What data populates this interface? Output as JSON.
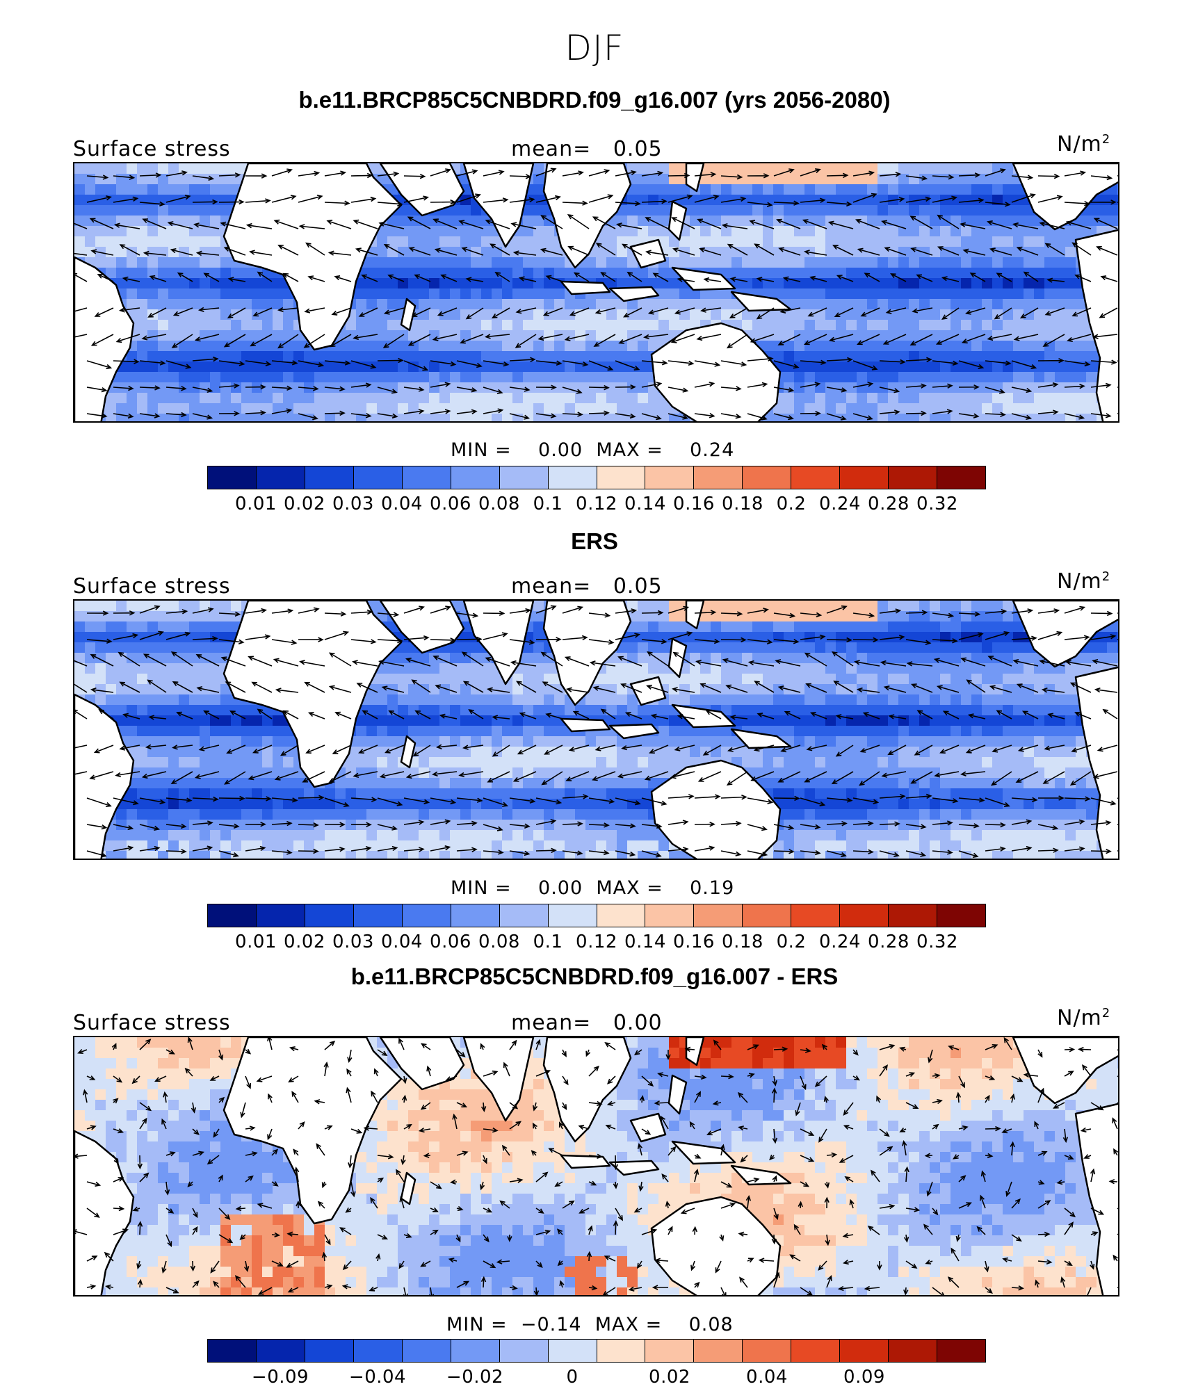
{
  "title": "DJF",
  "colors": {
    "fill": [
      "#00107a",
      "#0525ad",
      "#1446d6",
      "#2a5fe6",
      "#4a7af0",
      "#7399f5",
      "#a5bbf7",
      "#d3e1f8",
      "#fde2cd",
      "#fbc4a6",
      "#f59c76",
      "#ef744c",
      "#e74a24",
      "#d12c0d",
      "#ad1805",
      "#7e0503"
    ],
    "land": "#ffffff",
    "coast": "#000000"
  },
  "panels": [
    {
      "title": "b.e11.BRCP85C5CNBDRD.f09_g16.007 (yrs 2056-2080)",
      "variable": "Surface stress",
      "mean_label": "mean=",
      "mean_value": "0.05",
      "units": "N/m",
      "units_exp": "2",
      "min_label": "MIN =",
      "min_value": "0.00",
      "max_label": "MAX =",
      "max_value": "0.24",
      "colorbar_ticks": [
        "0.01",
        "0.02",
        "0.03",
        "0.04",
        "0.06",
        "0.08",
        "0.1",
        "0.12",
        "0.14",
        "0.16",
        "0.18",
        "0.2",
        "0.24",
        "0.28",
        "0.32"
      ],
      "field_type": "magnitude"
    },
    {
      "title": "ERS",
      "variable": "Surface stress",
      "mean_label": "mean=",
      "mean_value": "0.05",
      "units": "N/m",
      "units_exp": "2",
      "min_label": "MIN =",
      "min_value": "0.00",
      "max_label": "MAX =",
      "max_value": "0.19",
      "colorbar_ticks": [
        "0.01",
        "0.02",
        "0.03",
        "0.04",
        "0.06",
        "0.08",
        "0.1",
        "0.12",
        "0.14",
        "0.16",
        "0.18",
        "0.2",
        "0.24",
        "0.28",
        "0.32"
      ],
      "field_type": "magnitude"
    },
    {
      "title": "b.e11.BRCP85C5CNBDRD.f09_g16.007 - ERS",
      "variable": "Surface stress",
      "mean_label": "mean=",
      "mean_value": "0.00",
      "units": "N/m",
      "units_exp": "2",
      "min_label": "MIN =",
      "min_value": "−0.14",
      "max_label": "MAX =",
      "max_value": "0.08",
      "colorbar_ticks": [
        "−0.09",
        "",
        "−0.04",
        "",
        "−0.02",
        "",
        "0",
        "",
        "0.02",
        "",
        "0.04",
        "",
        "0.09"
      ],
      "field_type": "difference"
    }
  ]
}
